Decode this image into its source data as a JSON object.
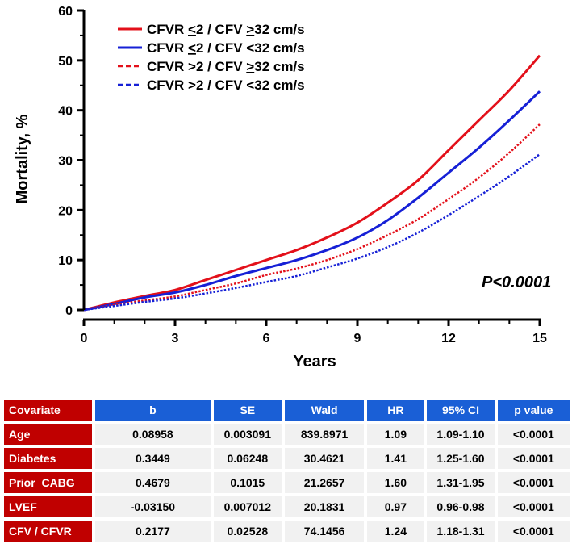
{
  "chart_data": {
    "type": "line",
    "title": "",
    "xlabel": "Years",
    "ylabel": "Mortality, %",
    "xlim": [
      0,
      15
    ],
    "ylim": [
      0,
      60
    ],
    "xticks": [
      0,
      3,
      6,
      9,
      12,
      15
    ],
    "yticks": [
      0,
      10,
      20,
      30,
      40,
      50,
      60
    ],
    "annotation": "P<0.0001",
    "x": [
      0,
      1,
      2,
      3,
      4,
      5,
      6,
      7,
      8,
      9,
      10,
      11,
      12,
      13,
      14,
      15
    ],
    "series": [
      {
        "name": "CFVR ≤2 / CFV ≥32 cm/s",
        "color": "#e3101a",
        "style": "solid",
        "values": [
          0,
          1.5,
          2.8,
          4.0,
          6.0,
          8.0,
          10.0,
          12.0,
          14.5,
          17.5,
          21.5,
          26.0,
          32.0,
          38.0,
          44.0,
          51.0
        ]
      },
      {
        "name": "CFVR ≤2 / CFV <32 cm/s",
        "color": "#1620d6",
        "style": "solid",
        "values": [
          0,
          1.2,
          2.5,
          3.5,
          5.0,
          6.8,
          8.4,
          10.0,
          12.0,
          14.5,
          18.0,
          22.5,
          27.5,
          32.5,
          38.0,
          43.8
        ]
      },
      {
        "name": "CFVR >2 / CFV ≥32 cm/s",
        "color": "#e3101a",
        "style": "dotted",
        "values": [
          0,
          1.0,
          1.9,
          2.7,
          4.0,
          5.3,
          7.0,
          8.3,
          10.0,
          12.2,
          15.0,
          18.2,
          22.2,
          26.5,
          31.5,
          37.2
        ]
      },
      {
        "name": "CFVR >2 / CFV <32 cm/s",
        "color": "#1620d6",
        "style": "dotted",
        "values": [
          0,
          0.8,
          1.6,
          2.3,
          3.3,
          4.4,
          5.6,
          6.8,
          8.5,
          10.3,
          12.6,
          15.5,
          19.0,
          22.8,
          26.8,
          31.2
        ]
      }
    ],
    "legend": [
      {
        "prefix": "CFVR ",
        "op1": "<",
        "mid": "2 / CFV ",
        "op2": ">",
        "suffix": "32 cm/s",
        "op1_underline": true,
        "op2_underline": true
      },
      {
        "prefix": "CFVR ",
        "op1": "<",
        "mid": "2 / CFV ",
        "op2": "<",
        "suffix": "32 cm/s",
        "op1_underline": true,
        "op2_underline": false
      },
      {
        "prefix": "CFVR ",
        "op1": ">",
        "mid": "2 / CFV ",
        "op2": ">",
        "suffix": "32 cm/s",
        "op1_underline": false,
        "op2_underline": true
      },
      {
        "prefix": "CFVR ",
        "op1": ">",
        "mid": "2 / CFV ",
        "op2": "<",
        "suffix": "32 cm/s",
        "op1_underline": false,
        "op2_underline": false
      }
    ]
  },
  "table": {
    "headers": [
      "Covariate",
      "b",
      "SE",
      "Wald",
      "HR",
      "95% CI",
      "p  value"
    ],
    "rows": [
      {
        "label": "Age",
        "cells": [
          "0.08958",
          "0.003091",
          "839.8971",
          "1.09",
          "1.09-1.10",
          "<0.0001"
        ]
      },
      {
        "label": "Diabetes",
        "cells": [
          "0.3449",
          "0.06248",
          "30.4621",
          "1.41",
          "1.25-1.60",
          "<0.0001"
        ]
      },
      {
        "label": "Prior_CABG",
        "cells": [
          "0.4679",
          "0.1015",
          "21.2657",
          "1.60",
          "1.31-1.95",
          "<0.0001"
        ]
      },
      {
        "label": "LVEF",
        "cells": [
          "-0.03150",
          "0.007012",
          "20.1831",
          "0.97",
          "0.96-0.98",
          "<0.0001"
        ]
      },
      {
        "label": "CFV / CFVR",
        "cells": [
          "0.2177",
          "0.02528",
          "74.1456",
          "1.24",
          "1.18-1.31",
          "<0.0001"
        ]
      }
    ]
  }
}
